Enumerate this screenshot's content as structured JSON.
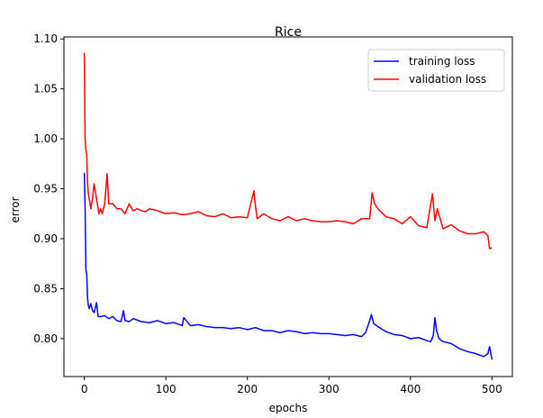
{
  "chart_data": {
    "type": "line",
    "title": "Rice",
    "xlabel": "epochs",
    "ylabel": "error",
    "xlim": [
      -25,
      525
    ],
    "ylim": [
      0.762,
      1.102
    ],
    "xticks": [
      0,
      100,
      200,
      300,
      400,
      500
    ],
    "yticks": [
      0.8,
      0.85,
      0.9,
      0.95,
      1.0,
      1.05,
      1.1
    ],
    "ytick_labels": [
      "0.80",
      "0.85",
      "0.90",
      "0.95",
      "1.00",
      "1.05",
      "1.10"
    ],
    "xtick_labels": [
      "0",
      "100",
      "200",
      "300",
      "400",
      "500"
    ],
    "grid": false,
    "legend_position": "top-right",
    "series": [
      {
        "name": "training loss",
        "color": "#0000ff",
        "x": [
          0,
          1,
          2,
          3,
          4,
          5,
          6,
          8,
          10,
          12,
          15,
          17,
          20,
          25,
          30,
          35,
          40,
          45,
          48,
          50,
          55,
          60,
          70,
          80,
          90,
          100,
          110,
          120,
          122,
          130,
          140,
          150,
          160,
          170,
          180,
          190,
          200,
          210,
          220,
          230,
          240,
          250,
          260,
          270,
          280,
          290,
          300,
          310,
          320,
          330,
          340,
          345,
          350,
          352,
          355,
          360,
          370,
          380,
          390,
          400,
          410,
          420,
          425,
          428,
          430,
          432,
          435,
          440,
          450,
          460,
          470,
          480,
          490,
          495,
          497,
          500
        ],
        "y": [
          0.966,
          0.93,
          0.868,
          0.865,
          0.84,
          0.833,
          0.83,
          0.835,
          0.828,
          0.826,
          0.836,
          0.822,
          0.822,
          0.823,
          0.82,
          0.822,
          0.818,
          0.817,
          0.828,
          0.818,
          0.817,
          0.82,
          0.817,
          0.816,
          0.818,
          0.815,
          0.816,
          0.813,
          0.821,
          0.813,
          0.814,
          0.812,
          0.811,
          0.811,
          0.81,
          0.811,
          0.809,
          0.811,
          0.808,
          0.808,
          0.806,
          0.808,
          0.807,
          0.805,
          0.806,
          0.805,
          0.805,
          0.804,
          0.803,
          0.804,
          0.802,
          0.806,
          0.818,
          0.824,
          0.815,
          0.812,
          0.807,
          0.804,
          0.803,
          0.8,
          0.801,
          0.798,
          0.797,
          0.803,
          0.821,
          0.808,
          0.8,
          0.797,
          0.795,
          0.79,
          0.787,
          0.785,
          0.782,
          0.785,
          0.792,
          0.779
        ]
      },
      {
        "name": "validation loss",
        "color": "#ff0000",
        "x": [
          0,
          1,
          2,
          3,
          4,
          5,
          6,
          8,
          10,
          12,
          15,
          18,
          20,
          22,
          25,
          28,
          30,
          35,
          40,
          45,
          50,
          55,
          60,
          65,
          70,
          75,
          80,
          90,
          100,
          110,
          120,
          130,
          140,
          150,
          160,
          170,
          180,
          190,
          200,
          208,
          210,
          212,
          220,
          230,
          240,
          250,
          260,
          270,
          280,
          290,
          300,
          310,
          320,
          330,
          340,
          350,
          353,
          356,
          360,
          370,
          380,
          390,
          400,
          410,
          420,
          427,
          430,
          433,
          440,
          450,
          460,
          470,
          480,
          490,
          495,
          497,
          500
        ],
        "y": [
          1.086,
          1.0,
          0.988,
          0.985,
          0.955,
          0.945,
          0.94,
          0.93,
          0.94,
          0.955,
          0.94,
          0.925,
          0.93,
          0.925,
          0.935,
          0.965,
          0.935,
          0.935,
          0.93,
          0.93,
          0.925,
          0.935,
          0.928,
          0.93,
          0.928,
          0.927,
          0.93,
          0.928,
          0.925,
          0.926,
          0.924,
          0.925,
          0.927,
          0.923,
          0.922,
          0.925,
          0.921,
          0.922,
          0.921,
          0.948,
          0.932,
          0.92,
          0.925,
          0.92,
          0.918,
          0.922,
          0.918,
          0.92,
          0.918,
          0.917,
          0.917,
          0.918,
          0.917,
          0.915,
          0.92,
          0.92,
          0.946,
          0.935,
          0.93,
          0.922,
          0.92,
          0.915,
          0.922,
          0.913,
          0.911,
          0.945,
          0.918,
          0.93,
          0.91,
          0.914,
          0.908,
          0.905,
          0.905,
          0.907,
          0.903,
          0.89,
          0.891
        ]
      }
    ]
  }
}
